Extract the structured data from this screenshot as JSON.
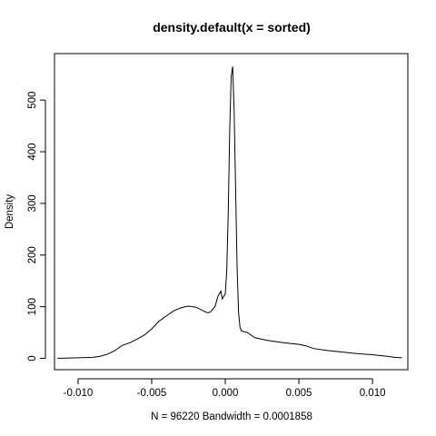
{
  "chart_data": {
    "type": "line",
    "title": "density.default(x = sorted)",
    "xlabel": "N = 96220   Bandwidth = 0.0001858",
    "ylabel": "Density",
    "xlim": [
      -0.0116,
      0.0124
    ],
    "ylim": [
      -22,
      590
    ],
    "x_ticks": [
      -0.01,
      -0.005,
      0.0,
      0.005,
      0.01
    ],
    "x_tick_labels": [
      "-0.010",
      "-0.005",
      "0.000",
      "0.005",
      "0.010"
    ],
    "y_ticks": [
      0,
      100,
      200,
      300,
      400,
      500
    ],
    "y_tick_labels": [
      "0",
      "100",
      "200",
      "300",
      "400",
      "500"
    ],
    "grid": false,
    "series": [
      {
        "x": [
          -0.0114,
          -0.01,
          -0.009,
          -0.0085,
          -0.008,
          -0.0075,
          -0.007,
          -0.0065,
          -0.006,
          -0.0055,
          -0.005,
          -0.0045,
          -0.004,
          -0.0035,
          -0.003,
          -0.0025,
          -0.002,
          -0.0017,
          -0.0015,
          -0.0012,
          -0.001,
          -0.0007,
          -0.0005,
          -0.0003,
          -0.0002,
          0.0,
          0.0001,
          0.0002,
          0.0003,
          0.0004,
          0.0005,
          0.0006,
          0.0007,
          0.0008,
          0.0009,
          0.001,
          0.0011,
          0.0012,
          0.0015,
          0.002,
          0.0025,
          0.003,
          0.004,
          0.005,
          0.0055,
          0.006,
          0.007,
          0.008,
          0.009,
          0.01,
          0.011,
          0.0115,
          0.012
        ],
        "y": [
          0,
          1,
          2,
          4,
          8,
          15,
          25,
          30,
          37,
          45,
          57,
          72,
          82,
          92,
          98,
          101,
          99,
          95,
          92,
          88,
          90,
          100,
          120,
          130,
          115,
          125,
          170,
          280,
          440,
          545,
          565,
          480,
          330,
          180,
          90,
          60,
          53,
          52,
          50,
          40,
          37,
          34,
          30,
          27,
          24,
          19,
          15,
          12,
          9,
          7,
          4,
          2,
          1
        ]
      }
    ]
  }
}
